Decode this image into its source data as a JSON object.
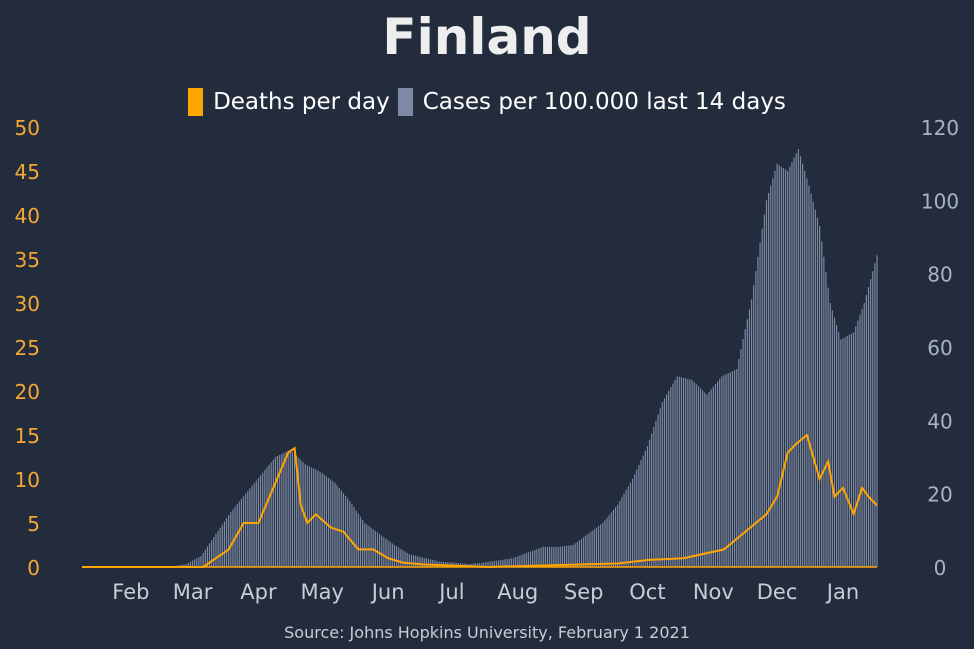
{
  "title": "Finland",
  "source": "Source: Johns Hopkins University, February 1 2021",
  "colors": {
    "background": "#232c3d",
    "deaths": "#ffa500",
    "cases": "#7d8aa4",
    "left_axis": "#f3a833",
    "right_axis": "#a9b3c6",
    "month_labels": "#c9ccd3"
  },
  "chart_data": {
    "type": "bar+line",
    "title": "Finland",
    "legend_position": "top-center",
    "grid": false,
    "x_months": [
      "Feb",
      "Mar",
      "Apr",
      "May",
      "Jun",
      "Jul",
      "Aug",
      "Sep",
      "Oct",
      "Nov",
      "Dec",
      "Jan"
    ],
    "x_range": [
      "2020-01-23",
      "2021-01-31"
    ],
    "left_axis": {
      "series": "Deaths per day",
      "ylim": [
        0,
        50
      ],
      "ticks": [
        0,
        5,
        10,
        15,
        20,
        25,
        30,
        35,
        40,
        45,
        50
      ]
    },
    "right_axis": {
      "series": "Cases per 100.000 last 14 days",
      "ylim": [
        0,
        120
      ],
      "ticks": [
        0,
        20,
        40,
        60,
        80,
        100,
        120
      ]
    },
    "series": [
      {
        "name": "Cases per 100.000 last 14 days",
        "type": "bar",
        "axis": "right",
        "points": [
          [
            "2020-01-23",
            0
          ],
          [
            "2020-02-28",
            0
          ],
          [
            "2020-03-05",
            0.1
          ],
          [
            "2020-03-12",
            0.8
          ],
          [
            "2020-03-19",
            3
          ],
          [
            "2020-03-26",
            9
          ],
          [
            "2020-04-02",
            15
          ],
          [
            "2020-04-09",
            20
          ],
          [
            "2020-04-16",
            25
          ],
          [
            "2020-04-23",
            30
          ],
          [
            "2020-04-30",
            32
          ],
          [
            "2020-05-07",
            28
          ],
          [
            "2020-05-14",
            26
          ],
          [
            "2020-05-21",
            23
          ],
          [
            "2020-05-28",
            18
          ],
          [
            "2020-06-04",
            12
          ],
          [
            "2020-06-11",
            9
          ],
          [
            "2020-06-18",
            6
          ],
          [
            "2020-06-25",
            3.5
          ],
          [
            "2020-07-02",
            2.5
          ],
          [
            "2020-07-09",
            1.5
          ],
          [
            "2020-07-16",
            1.2
          ],
          [
            "2020-07-23",
            0.8
          ],
          [
            "2020-07-30",
            1.2
          ],
          [
            "2020-08-06",
            1.8
          ],
          [
            "2020-08-13",
            2.5
          ],
          [
            "2020-08-20",
            4
          ],
          [
            "2020-08-27",
            5.5
          ],
          [
            "2020-09-03",
            5.5
          ],
          [
            "2020-09-10",
            6
          ],
          [
            "2020-09-17",
            9
          ],
          [
            "2020-09-24",
            12
          ],
          [
            "2020-10-01",
            17
          ],
          [
            "2020-10-08",
            24
          ],
          [
            "2020-10-15",
            33
          ],
          [
            "2020-10-22",
            45
          ],
          [
            "2020-10-29",
            52
          ],
          [
            "2020-11-05",
            51
          ],
          [
            "2020-11-12",
            47
          ],
          [
            "2020-11-19",
            52
          ],
          [
            "2020-11-26",
            54
          ],
          [
            "2020-12-03",
            73
          ],
          [
            "2020-12-10",
            100
          ],
          [
            "2020-12-15",
            110
          ],
          [
            "2020-12-20",
            108
          ],
          [
            "2020-12-25",
            114
          ],
          [
            "2020-12-30",
            104
          ],
          [
            "2021-01-04",
            93
          ],
          [
            "2021-01-09",
            72
          ],
          [
            "2021-01-14",
            62
          ],
          [
            "2021-01-20",
            64
          ],
          [
            "2021-01-25",
            72
          ],
          [
            "2021-01-31",
            85
          ]
        ]
      },
      {
        "name": "Deaths per day",
        "type": "line",
        "axis": "left",
        "points": [
          [
            "2020-01-23",
            0
          ],
          [
            "2020-03-20",
            0
          ],
          [
            "2020-04-01",
            2
          ],
          [
            "2020-04-08",
            5
          ],
          [
            "2020-04-15",
            5
          ],
          [
            "2020-04-22",
            9
          ],
          [
            "2020-04-29",
            13
          ],
          [
            "2020-05-02",
            13.5
          ],
          [
            "2020-05-05",
            7
          ],
          [
            "2020-05-08",
            5
          ],
          [
            "2020-05-12",
            6
          ],
          [
            "2020-05-19",
            4.5
          ],
          [
            "2020-05-25",
            4
          ],
          [
            "2020-06-01",
            2
          ],
          [
            "2020-06-08",
            2
          ],
          [
            "2020-06-15",
            1
          ],
          [
            "2020-06-22",
            0.5
          ],
          [
            "2020-07-01",
            0.3
          ],
          [
            "2020-08-01",
            0
          ],
          [
            "2020-09-15",
            0.3
          ],
          [
            "2020-10-01",
            0.4
          ],
          [
            "2020-10-15",
            0.8
          ],
          [
            "2020-11-01",
            1
          ],
          [
            "2020-11-20",
            2
          ],
          [
            "2020-12-05",
            5
          ],
          [
            "2020-12-10",
            6
          ],
          [
            "2020-12-15",
            8
          ],
          [
            "2020-12-20",
            13
          ],
          [
            "2020-12-24",
            14
          ],
          [
            "2020-12-29",
            15
          ],
          [
            "2021-01-04",
            10
          ],
          [
            "2021-01-08",
            12
          ],
          [
            "2021-01-11",
            8
          ],
          [
            "2021-01-15",
            9
          ],
          [
            "2021-01-20",
            6
          ],
          [
            "2021-01-24",
            9
          ],
          [
            "2021-01-27",
            8
          ],
          [
            "2021-01-31",
            7
          ]
        ]
      }
    ]
  }
}
